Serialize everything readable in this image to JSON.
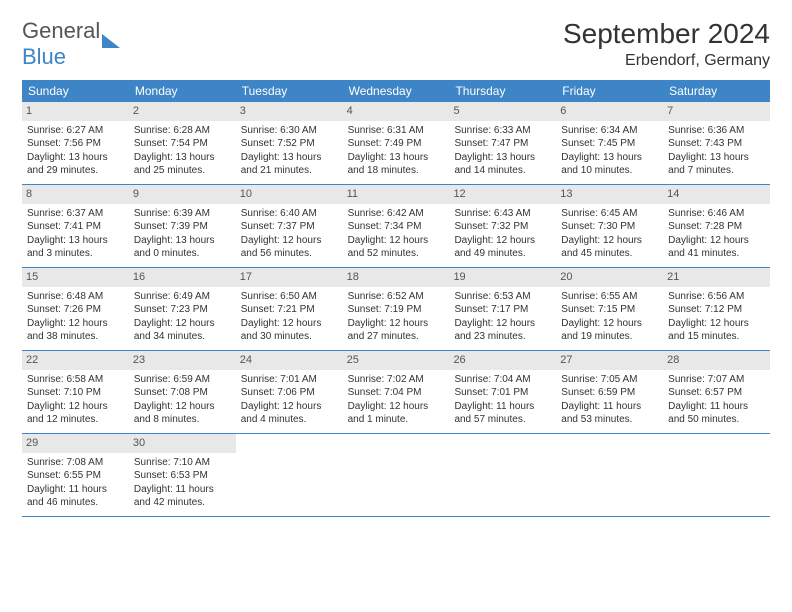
{
  "logo": {
    "text1": "General",
    "text2": "Blue"
  },
  "title": "September 2024",
  "location": "Erbendorf, Germany",
  "colors": {
    "header_bg": "#3d85c6",
    "header_text": "#ffffff",
    "daynum_bg": "#e8e8e8",
    "body_text": "#333333",
    "border": "#3d85c6"
  },
  "typography": {
    "title_fontsize": 28,
    "location_fontsize": 16,
    "header_fontsize": 12,
    "cell_fontsize": 10
  },
  "layout": {
    "columns": 7,
    "rows": 5,
    "cell_min_height": 82
  },
  "day_headers": [
    "Sunday",
    "Monday",
    "Tuesday",
    "Wednesday",
    "Thursday",
    "Friday",
    "Saturday"
  ],
  "weeks": [
    [
      {
        "num": "1",
        "sunrise": "Sunrise: 6:27 AM",
        "sunset": "Sunset: 7:56 PM",
        "dl1": "Daylight: 13 hours",
        "dl2": "and 29 minutes."
      },
      {
        "num": "2",
        "sunrise": "Sunrise: 6:28 AM",
        "sunset": "Sunset: 7:54 PM",
        "dl1": "Daylight: 13 hours",
        "dl2": "and 25 minutes."
      },
      {
        "num": "3",
        "sunrise": "Sunrise: 6:30 AM",
        "sunset": "Sunset: 7:52 PM",
        "dl1": "Daylight: 13 hours",
        "dl2": "and 21 minutes."
      },
      {
        "num": "4",
        "sunrise": "Sunrise: 6:31 AM",
        "sunset": "Sunset: 7:49 PM",
        "dl1": "Daylight: 13 hours",
        "dl2": "and 18 minutes."
      },
      {
        "num": "5",
        "sunrise": "Sunrise: 6:33 AM",
        "sunset": "Sunset: 7:47 PM",
        "dl1": "Daylight: 13 hours",
        "dl2": "and 14 minutes."
      },
      {
        "num": "6",
        "sunrise": "Sunrise: 6:34 AM",
        "sunset": "Sunset: 7:45 PM",
        "dl1": "Daylight: 13 hours",
        "dl2": "and 10 minutes."
      },
      {
        "num": "7",
        "sunrise": "Sunrise: 6:36 AM",
        "sunset": "Sunset: 7:43 PM",
        "dl1": "Daylight: 13 hours",
        "dl2": "and 7 minutes."
      }
    ],
    [
      {
        "num": "8",
        "sunrise": "Sunrise: 6:37 AM",
        "sunset": "Sunset: 7:41 PM",
        "dl1": "Daylight: 13 hours",
        "dl2": "and 3 minutes."
      },
      {
        "num": "9",
        "sunrise": "Sunrise: 6:39 AM",
        "sunset": "Sunset: 7:39 PM",
        "dl1": "Daylight: 13 hours",
        "dl2": "and 0 minutes."
      },
      {
        "num": "10",
        "sunrise": "Sunrise: 6:40 AM",
        "sunset": "Sunset: 7:37 PM",
        "dl1": "Daylight: 12 hours",
        "dl2": "and 56 minutes."
      },
      {
        "num": "11",
        "sunrise": "Sunrise: 6:42 AM",
        "sunset": "Sunset: 7:34 PM",
        "dl1": "Daylight: 12 hours",
        "dl2": "and 52 minutes."
      },
      {
        "num": "12",
        "sunrise": "Sunrise: 6:43 AM",
        "sunset": "Sunset: 7:32 PM",
        "dl1": "Daylight: 12 hours",
        "dl2": "and 49 minutes."
      },
      {
        "num": "13",
        "sunrise": "Sunrise: 6:45 AM",
        "sunset": "Sunset: 7:30 PM",
        "dl1": "Daylight: 12 hours",
        "dl2": "and 45 minutes."
      },
      {
        "num": "14",
        "sunrise": "Sunrise: 6:46 AM",
        "sunset": "Sunset: 7:28 PM",
        "dl1": "Daylight: 12 hours",
        "dl2": "and 41 minutes."
      }
    ],
    [
      {
        "num": "15",
        "sunrise": "Sunrise: 6:48 AM",
        "sunset": "Sunset: 7:26 PM",
        "dl1": "Daylight: 12 hours",
        "dl2": "and 38 minutes."
      },
      {
        "num": "16",
        "sunrise": "Sunrise: 6:49 AM",
        "sunset": "Sunset: 7:23 PM",
        "dl1": "Daylight: 12 hours",
        "dl2": "and 34 minutes."
      },
      {
        "num": "17",
        "sunrise": "Sunrise: 6:50 AM",
        "sunset": "Sunset: 7:21 PM",
        "dl1": "Daylight: 12 hours",
        "dl2": "and 30 minutes."
      },
      {
        "num": "18",
        "sunrise": "Sunrise: 6:52 AM",
        "sunset": "Sunset: 7:19 PM",
        "dl1": "Daylight: 12 hours",
        "dl2": "and 27 minutes."
      },
      {
        "num": "19",
        "sunrise": "Sunrise: 6:53 AM",
        "sunset": "Sunset: 7:17 PM",
        "dl1": "Daylight: 12 hours",
        "dl2": "and 23 minutes."
      },
      {
        "num": "20",
        "sunrise": "Sunrise: 6:55 AM",
        "sunset": "Sunset: 7:15 PM",
        "dl1": "Daylight: 12 hours",
        "dl2": "and 19 minutes."
      },
      {
        "num": "21",
        "sunrise": "Sunrise: 6:56 AM",
        "sunset": "Sunset: 7:12 PM",
        "dl1": "Daylight: 12 hours",
        "dl2": "and 15 minutes."
      }
    ],
    [
      {
        "num": "22",
        "sunrise": "Sunrise: 6:58 AM",
        "sunset": "Sunset: 7:10 PM",
        "dl1": "Daylight: 12 hours",
        "dl2": "and 12 minutes."
      },
      {
        "num": "23",
        "sunrise": "Sunrise: 6:59 AM",
        "sunset": "Sunset: 7:08 PM",
        "dl1": "Daylight: 12 hours",
        "dl2": "and 8 minutes."
      },
      {
        "num": "24",
        "sunrise": "Sunrise: 7:01 AM",
        "sunset": "Sunset: 7:06 PM",
        "dl1": "Daylight: 12 hours",
        "dl2": "and 4 minutes."
      },
      {
        "num": "25",
        "sunrise": "Sunrise: 7:02 AM",
        "sunset": "Sunset: 7:04 PM",
        "dl1": "Daylight: 12 hours",
        "dl2": "and 1 minute."
      },
      {
        "num": "26",
        "sunrise": "Sunrise: 7:04 AM",
        "sunset": "Sunset: 7:01 PM",
        "dl1": "Daylight: 11 hours",
        "dl2": "and 57 minutes."
      },
      {
        "num": "27",
        "sunrise": "Sunrise: 7:05 AM",
        "sunset": "Sunset: 6:59 PM",
        "dl1": "Daylight: 11 hours",
        "dl2": "and 53 minutes."
      },
      {
        "num": "28",
        "sunrise": "Sunrise: 7:07 AM",
        "sunset": "Sunset: 6:57 PM",
        "dl1": "Daylight: 11 hours",
        "dl2": "and 50 minutes."
      }
    ],
    [
      {
        "num": "29",
        "sunrise": "Sunrise: 7:08 AM",
        "sunset": "Sunset: 6:55 PM",
        "dl1": "Daylight: 11 hours",
        "dl2": "and 46 minutes."
      },
      {
        "num": "30",
        "sunrise": "Sunrise: 7:10 AM",
        "sunset": "Sunset: 6:53 PM",
        "dl1": "Daylight: 11 hours",
        "dl2": "and 42 minutes."
      },
      null,
      null,
      null,
      null,
      null
    ]
  ]
}
